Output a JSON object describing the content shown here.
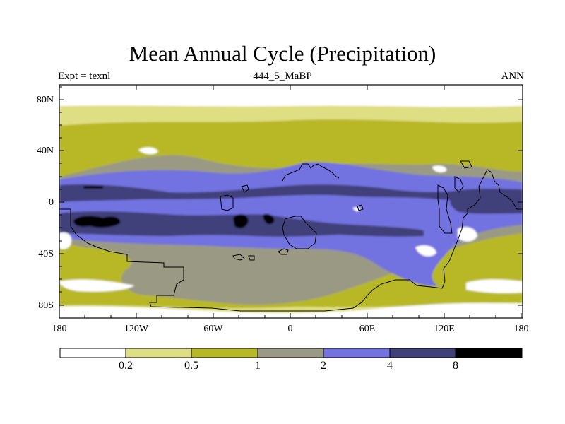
{
  "title": "Mean Annual Cycle (Precipitation)",
  "subtitle_left": "Expt = texnl",
  "subtitle_center": "444_5_MaBP",
  "subtitle_right": "ANN",
  "lat_ticks": [
    "80N",
    "40N",
    "0",
    "40S",
    "80S"
  ],
  "lon_ticks": [
    "180",
    "120W",
    "60W",
    "0",
    "60E",
    "120E",
    "180"
  ],
  "colorbar": {
    "labels": [
      "0.2",
      "0.5",
      "1",
      "2",
      "4",
      "8"
    ],
    "colors": [
      "#ffffff",
      "#dede82",
      "#b8b826",
      "#9a9a84",
      "#7272e0",
      "#40407a",
      "#000000"
    ]
  }
}
